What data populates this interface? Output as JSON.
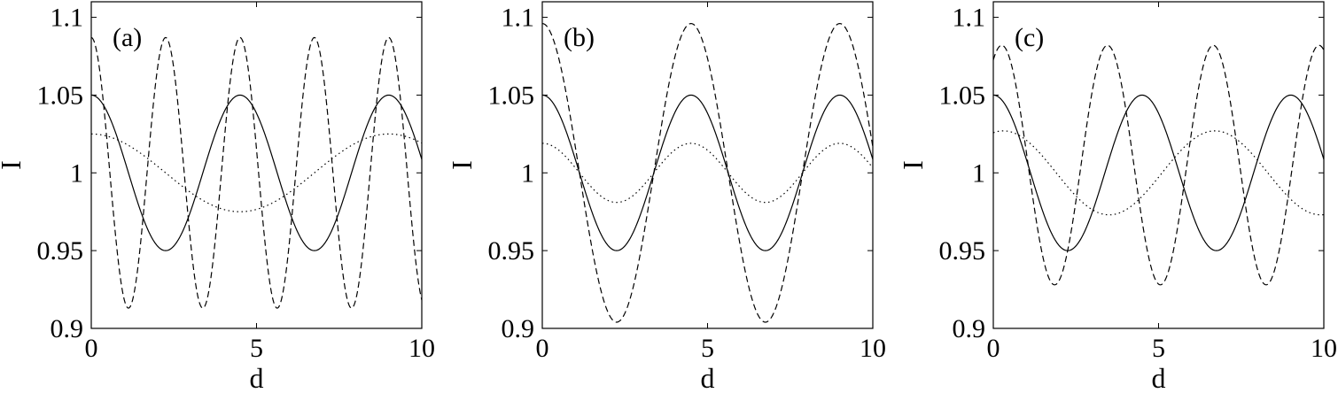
{
  "chart_data": [
    {
      "type": "line",
      "panel_label": "(a)",
      "xlabel": "d",
      "ylabel": "I",
      "xlim": [
        0,
        10
      ],
      "ylim": [
        0.9,
        1.11
      ],
      "x_ticks": [
        "0",
        "5",
        "10"
      ],
      "y_ticks": [
        "0.9",
        "0.95",
        "1",
        "1.05",
        "1.1"
      ],
      "series": [
        {
          "style": "solid",
          "color": "#000000",
          "mean": 1.0,
          "amplitude": 0.05,
          "period": 4.5,
          "phase": 0
        },
        {
          "style": "dashed",
          "color": "#000000",
          "mean": 1.0,
          "amplitude": 0.087,
          "period": 2.25,
          "phase": 0
        },
        {
          "style": "dotted",
          "color": "#000000",
          "mean": 1.0,
          "amplitude": 0.025,
          "period": 9.0,
          "phase": 0
        }
      ]
    },
    {
      "type": "line",
      "panel_label": "(b)",
      "xlabel": "d",
      "ylabel": "I",
      "xlim": [
        0,
        10
      ],
      "ylim": [
        0.9,
        1.11
      ],
      "x_ticks": [
        "0",
        "5",
        "10"
      ],
      "y_ticks": [
        "0.9",
        "0.95",
        "1",
        "1.05",
        "1.1"
      ],
      "series": [
        {
          "style": "solid",
          "color": "#000000",
          "mean": 1.0,
          "amplitude": 0.05,
          "period": 4.5,
          "phase": 0
        },
        {
          "style": "dashed",
          "color": "#000000",
          "mean": 1.0,
          "amplitude": 0.096,
          "period": 4.5,
          "phase": 0
        },
        {
          "style": "dotted",
          "color": "#000000",
          "mean": 1.0,
          "amplitude": 0.019,
          "period": 4.5,
          "phase": 0
        }
      ]
    },
    {
      "type": "line",
      "panel_label": "(c)",
      "xlabel": "d",
      "ylabel": "I",
      "xlim": [
        0,
        10
      ],
      "ylim": [
        0.9,
        1.11
      ],
      "x_ticks": [
        "0",
        "5",
        "10"
      ],
      "y_ticks": [
        "0.9",
        "0.95",
        "1",
        "1.05",
        "1.1"
      ],
      "series": [
        {
          "style": "solid",
          "color": "#000000",
          "mean": 1.0,
          "amplitude": 0.05,
          "period": 4.5,
          "phase": 0
        },
        {
          "style": "dashed",
          "color": "#000000",
          "mean": 1.005,
          "amplitude": 0.077,
          "period": 3.2,
          "phase": 0.5
        },
        {
          "style": "dotted",
          "color": "#000000",
          "mean": 1.0,
          "amplitude": 0.027,
          "period": 6.4,
          "phase": 0.3
        }
      ]
    }
  ]
}
